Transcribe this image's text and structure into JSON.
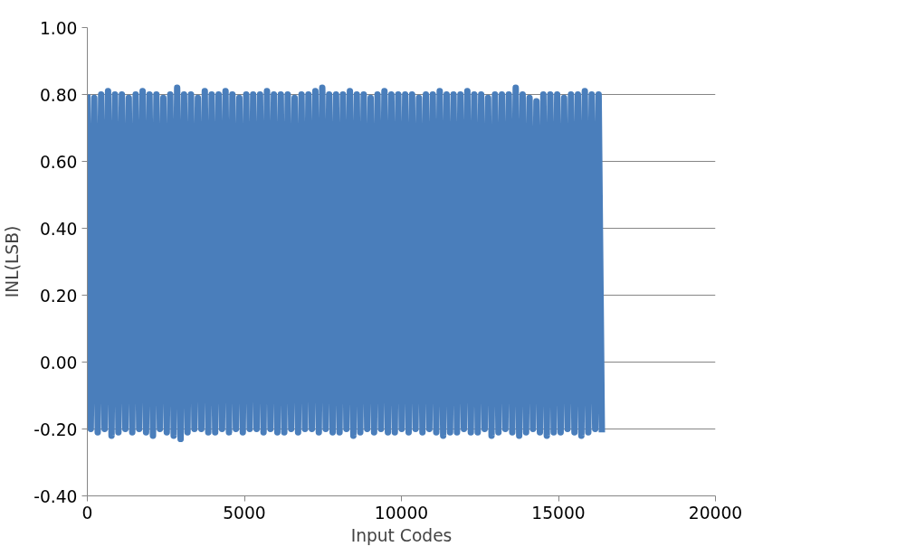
{
  "chart_data": {
    "type": "line",
    "xlabel": "Input Codes",
    "ylabel": "INL(LSB)",
    "xlim": [
      0,
      20000
    ],
    "xticks": [
      0,
      5000,
      10000,
      15000,
      20000
    ],
    "ylim": [
      -0.4,
      1.0
    ],
    "yticks": [
      {
        "value": -0.4,
        "label": "-0.40"
      },
      {
        "value": -0.2,
        "label": "-0.20"
      },
      {
        "value": 0,
        "label": "0.00"
      },
      {
        "value": 0.2,
        "label": "0.20"
      },
      {
        "value": 0.4,
        "label": "0.40"
      },
      {
        "value": 0.6,
        "label": "0.60"
      },
      {
        "value": 0.8,
        "label": "0.80"
      },
      {
        "value": 1.0,
        "label": "1.00"
      }
    ],
    "grid": "y",
    "marker": "none",
    "line_style": "solid",
    "x": [
      0,
      110,
      220,
      330,
      440,
      550,
      660,
      770,
      880,
      990,
      1100,
      1210,
      1320,
      1430,
      1540,
      1650,
      1760,
      1870,
      1980,
      2090,
      2200,
      2310,
      2420,
      2530,
      2640,
      2750,
      2860,
      2970,
      3080,
      3190,
      3300,
      3410,
      3520,
      3630,
      3740,
      3850,
      3960,
      4070,
      4180,
      4290,
      4400,
      4510,
      4620,
      4730,
      4840,
      4950,
      5060,
      5170,
      5280,
      5390,
      5500,
      5610,
      5720,
      5830,
      5940,
      6050,
      6160,
      6270,
      6380,
      6490,
      6600,
      6710,
      6820,
      6930,
      7040,
      7150,
      7260,
      7370,
      7480,
      7590,
      7700,
      7810,
      7920,
      8030,
      8140,
      8250,
      8360,
      8470,
      8580,
      8690,
      8800,
      8910,
      9020,
      9130,
      9240,
      9350,
      9460,
      9570,
      9680,
      9790,
      9900,
      10010,
      10120,
      10230,
      10340,
      10450,
      10560,
      10670,
      10780,
      10890,
      11000,
      11110,
      11220,
      11330,
      11440,
      11550,
      11660,
      11770,
      11880,
      11990,
      12100,
      12210,
      12320,
      12430,
      12540,
      12650,
      12760,
      12870,
      12980,
      13090,
      13200,
      13310,
      13420,
      13530,
      13640,
      13750,
      13860,
      13970,
      14080,
      14190,
      14300,
      14410,
      14520,
      14630,
      14740,
      14850,
      14960,
      15070,
      15180,
      15290,
      15400,
      15510,
      15620,
      15730,
      15840,
      15950,
      16060,
      16170,
      16280,
      16383
    ],
    "series": [
      {
        "color": "#4a7ebb",
        "values": [
          0.8,
          -0.2,
          0.79,
          -0.21,
          0.8,
          -0.2,
          0.81,
          -0.22,
          0.8,
          -0.21,
          0.8,
          -0.2,
          0.79,
          -0.21,
          0.8,
          -0.2,
          0.81,
          -0.21,
          0.8,
          -0.22,
          0.8,
          -0.2,
          0.79,
          -0.21,
          0.8,
          -0.22,
          0.82,
          -0.23,
          0.8,
          -0.21,
          0.8,
          -0.2,
          0.79,
          -0.2,
          0.81,
          -0.21,
          0.8,
          -0.21,
          0.8,
          -0.2,
          0.81,
          -0.21,
          0.8,
          -0.2,
          0.79,
          -0.21,
          0.8,
          -0.2,
          0.8,
          -0.2,
          0.8,
          -0.21,
          0.81,
          -0.2,
          0.8,
          -0.21,
          0.8,
          -0.21,
          0.8,
          -0.2,
          0.79,
          -0.21,
          0.8,
          -0.2,
          0.8,
          -0.2,
          0.81,
          -0.21,
          0.82,
          -0.2,
          0.8,
          -0.21,
          0.8,
          -0.21,
          0.8,
          -0.2,
          0.81,
          -0.22,
          0.8,
          -0.21,
          0.8,
          -0.2,
          0.79,
          -0.21,
          0.8,
          -0.2,
          0.81,
          -0.21,
          0.8,
          -0.21,
          0.8,
          -0.2,
          0.8,
          -0.21,
          0.8,
          -0.2,
          0.79,
          -0.21,
          0.8,
          -0.2,
          0.8,
          -0.21,
          0.81,
          -0.22,
          0.8,
          -0.21,
          0.8,
          -0.21,
          0.8,
          -0.2,
          0.81,
          -0.21,
          0.8,
          -0.21,
          0.8,
          -0.2,
          0.79,
          -0.22,
          0.8,
          -0.21,
          0.8,
          -0.2,
          0.8,
          -0.21,
          0.82,
          -0.22,
          0.8,
          -0.21,
          0.79,
          -0.2,
          0.78,
          -0.21,
          0.8,
          -0.22,
          0.8,
          -0.21,
          0.8,
          -0.21,
          0.79,
          -0.2,
          0.8,
          -0.21,
          0.8,
          -0.22,
          0.81,
          -0.21,
          0.8,
          -0.2,
          0.8,
          -0.21
        ]
      }
    ]
  }
}
